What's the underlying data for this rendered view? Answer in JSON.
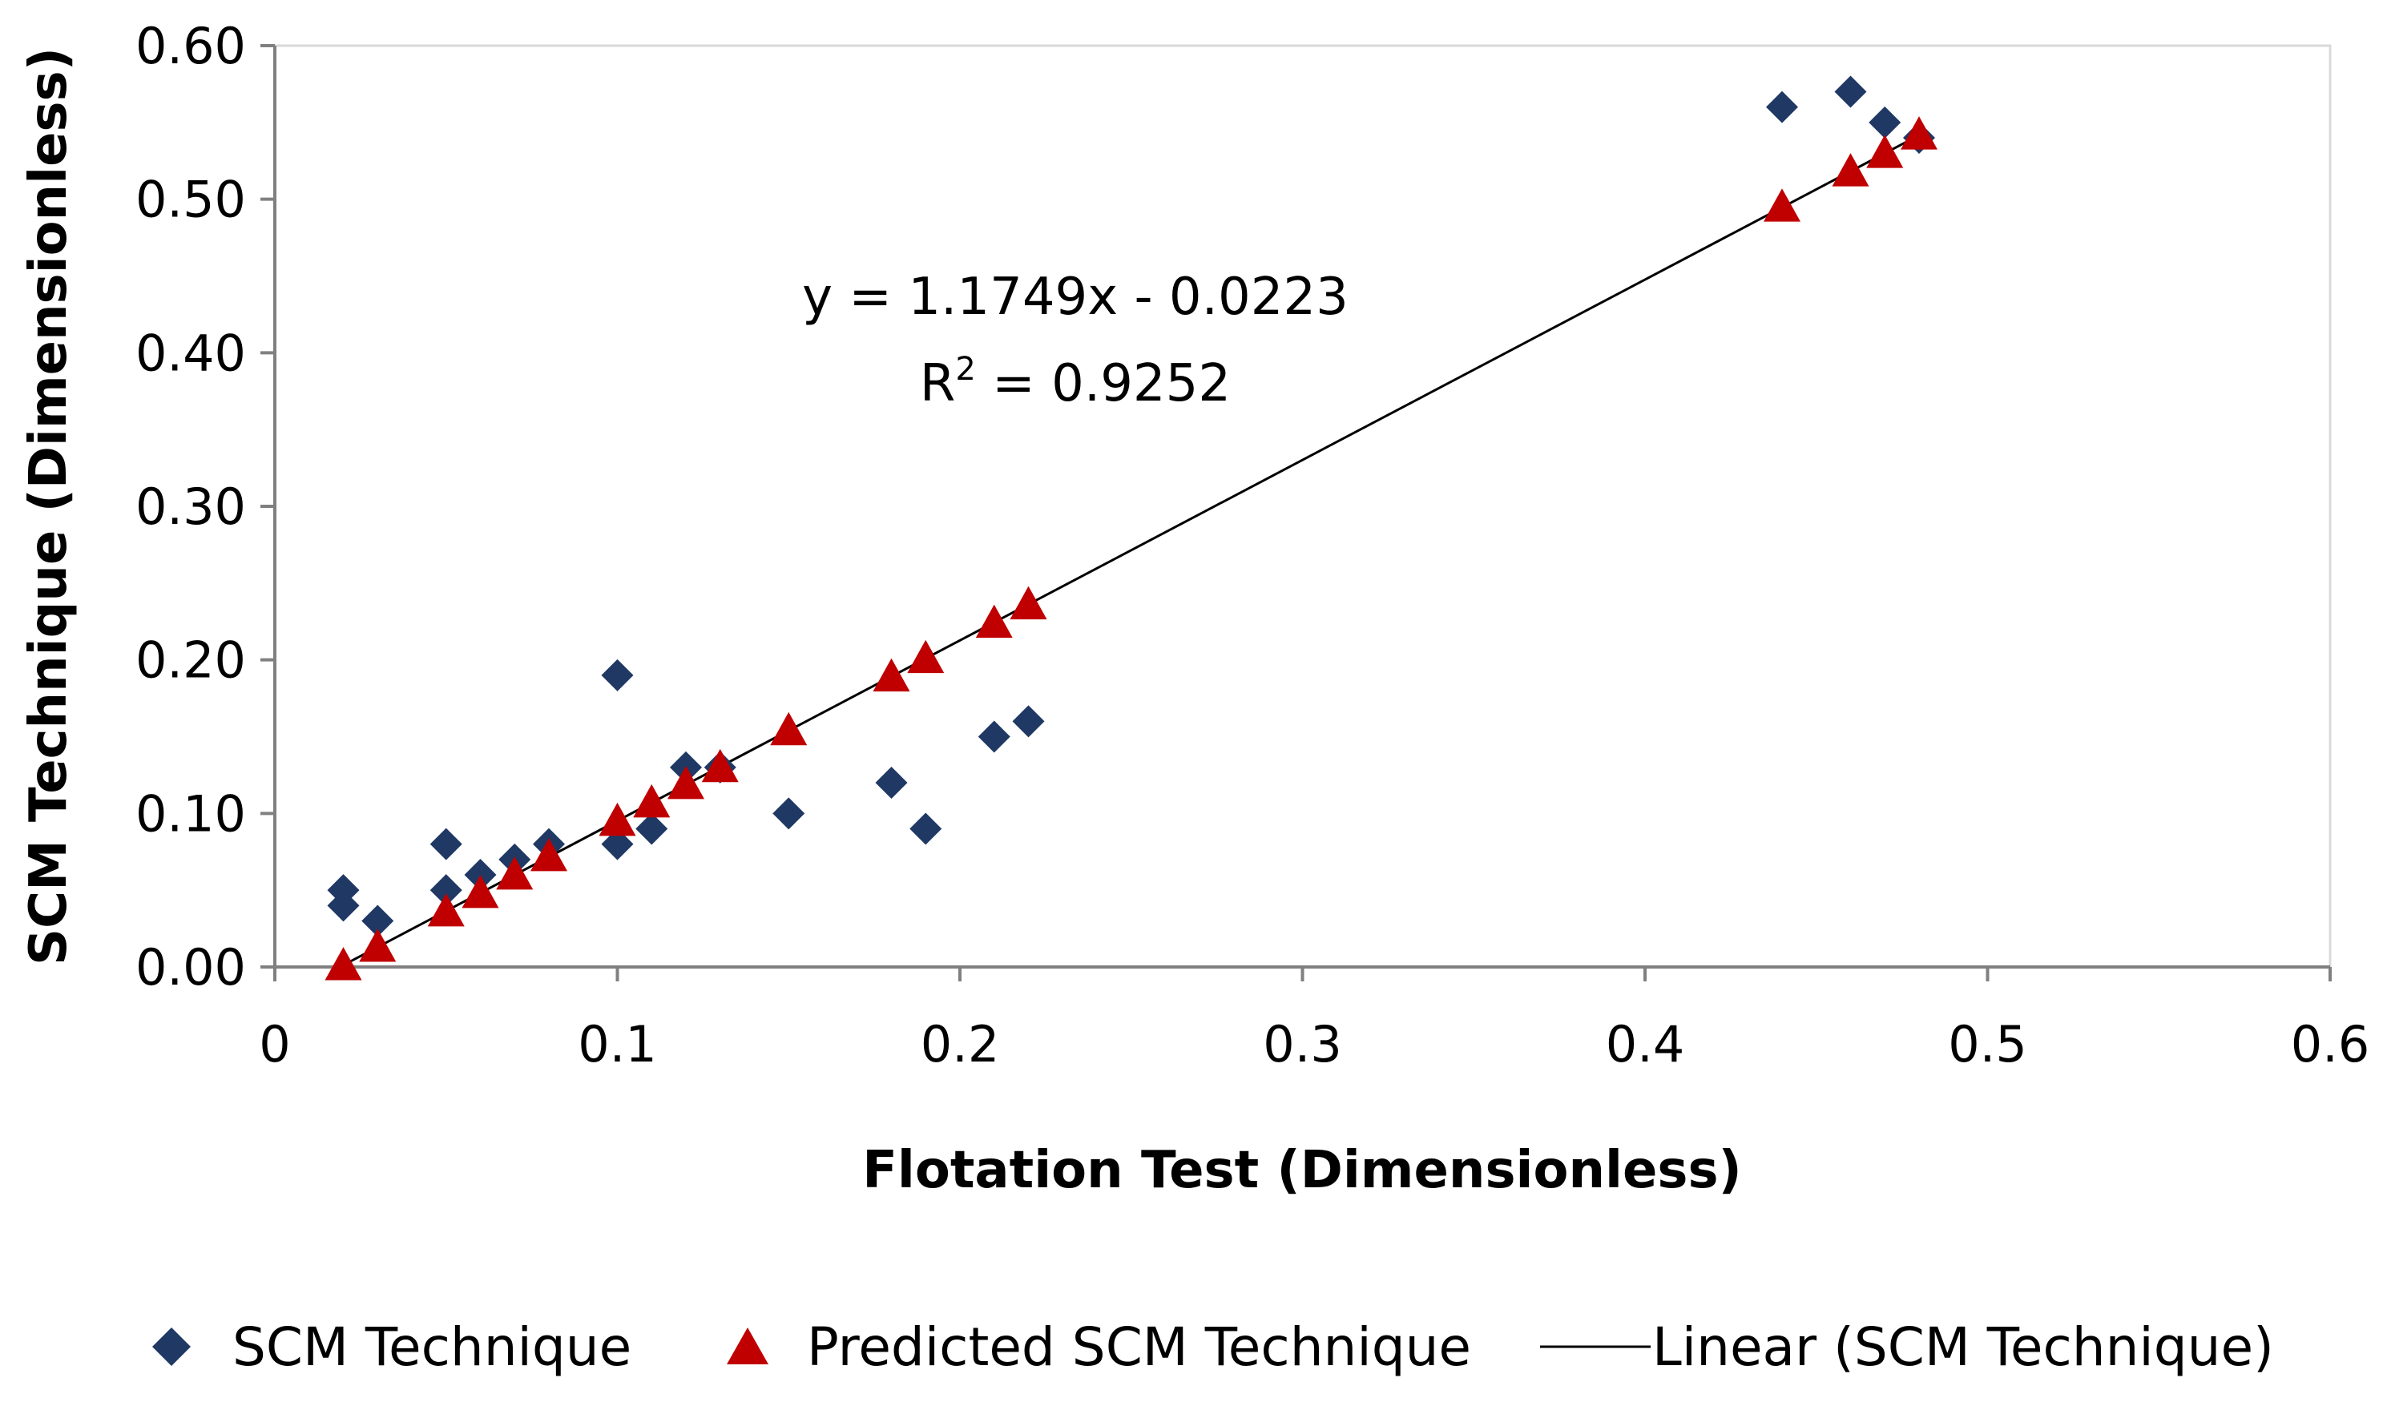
{
  "chart_data": {
    "type": "scatter",
    "xlabel": "Flotation Test (Dimensionless)",
    "ylabel": "SCM Technique (Dimensionless)",
    "xlim": [
      0,
      0.6
    ],
    "ylim": [
      0,
      0.6
    ],
    "x_ticks": [
      "0",
      "0.1",
      "0.2",
      "0.3",
      "0.4",
      "0.5",
      "0.6"
    ],
    "y_ticks": [
      "0.00",
      "0.10",
      "0.20",
      "0.30",
      "0.40",
      "0.50",
      "0.60"
    ],
    "series": [
      {
        "name": "SCM Technique",
        "marker": "diamond",
        "color": "#1f3864",
        "points": [
          [
            0.02,
            0.05
          ],
          [
            0.02,
            0.04
          ],
          [
            0.03,
            0.03
          ],
          [
            0.05,
            0.08
          ],
          [
            0.05,
            0.05
          ],
          [
            0.06,
            0.06
          ],
          [
            0.07,
            0.07
          ],
          [
            0.08,
            0.08
          ],
          [
            0.1,
            0.19
          ],
          [
            0.1,
            0.08
          ],
          [
            0.11,
            0.09
          ],
          [
            0.12,
            0.13
          ],
          [
            0.13,
            0.13
          ],
          [
            0.15,
            0.1
          ],
          [
            0.18,
            0.12
          ],
          [
            0.19,
            0.09
          ],
          [
            0.21,
            0.15
          ],
          [
            0.22,
            0.16
          ],
          [
            0.44,
            0.56
          ],
          [
            0.46,
            0.57
          ],
          [
            0.47,
            0.55
          ],
          [
            0.48,
            0.54
          ]
        ]
      },
      {
        "name": "Predicted SCM Technique",
        "marker": "triangle",
        "color": "#c00000",
        "points": [
          [
            0.02,
            0.001
          ],
          [
            0.03,
            0.013
          ],
          [
            0.05,
            0.036
          ],
          [
            0.06,
            0.048
          ],
          [
            0.07,
            0.06
          ],
          [
            0.08,
            0.072
          ],
          [
            0.1,
            0.095
          ],
          [
            0.11,
            0.107
          ],
          [
            0.12,
            0.119
          ],
          [
            0.13,
            0.13
          ],
          [
            0.15,
            0.154
          ],
          [
            0.18,
            0.189
          ],
          [
            0.19,
            0.201
          ],
          [
            0.21,
            0.224
          ],
          [
            0.22,
            0.236
          ],
          [
            0.44,
            0.495
          ],
          [
            0.46,
            0.518
          ],
          [
            0.47,
            0.53
          ],
          [
            0.48,
            0.542
          ]
        ]
      },
      {
        "name": "Linear (SCM Technique)",
        "type": "line",
        "color": "#000000",
        "slope": 1.1749,
        "intercept": -0.0223,
        "x_range": [
          0.02,
          0.48
        ]
      }
    ],
    "annotation": {
      "equation": "y = 1.1749x - 0.0223",
      "r2_prefix": "R",
      "r2_sup": "2",
      "r2_suffix": " = 0.9252"
    },
    "legend": {
      "position": "bottom",
      "items": [
        "SCM Technique",
        "Predicted SCM Technique",
        "Linear (SCM Technique)"
      ]
    }
  }
}
